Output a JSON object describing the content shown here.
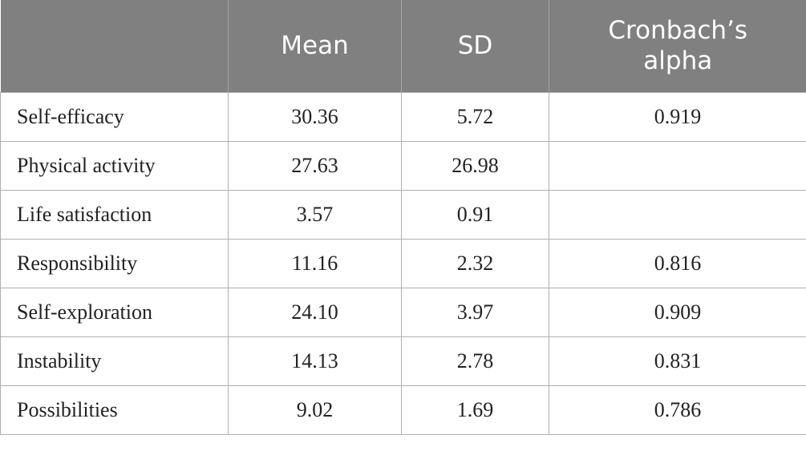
{
  "table": {
    "header": [
      null,
      "Mean",
      "SD",
      "Cronbach’s alpha"
    ],
    "rows": [
      [
        "Self-efficacy",
        "30.36",
        "5.72",
        "0.919"
      ],
      [
        "Physical activity",
        "27.63",
        "26.98",
        null
      ],
      [
        "Life satisfaction",
        "3.57",
        "0.91",
        null
      ],
      [
        "Responsibility",
        "11.16",
        "2.32",
        "0.816"
      ],
      [
        "Self-exploration",
        "24.10",
        "3.97",
        "0.909"
      ],
      [
        "Instability",
        "14.13",
        "2.78",
        "0.831"
      ],
      [
        "Possibilities",
        "9.02",
        "1.69",
        "0.786"
      ]
    ]
  }
}
